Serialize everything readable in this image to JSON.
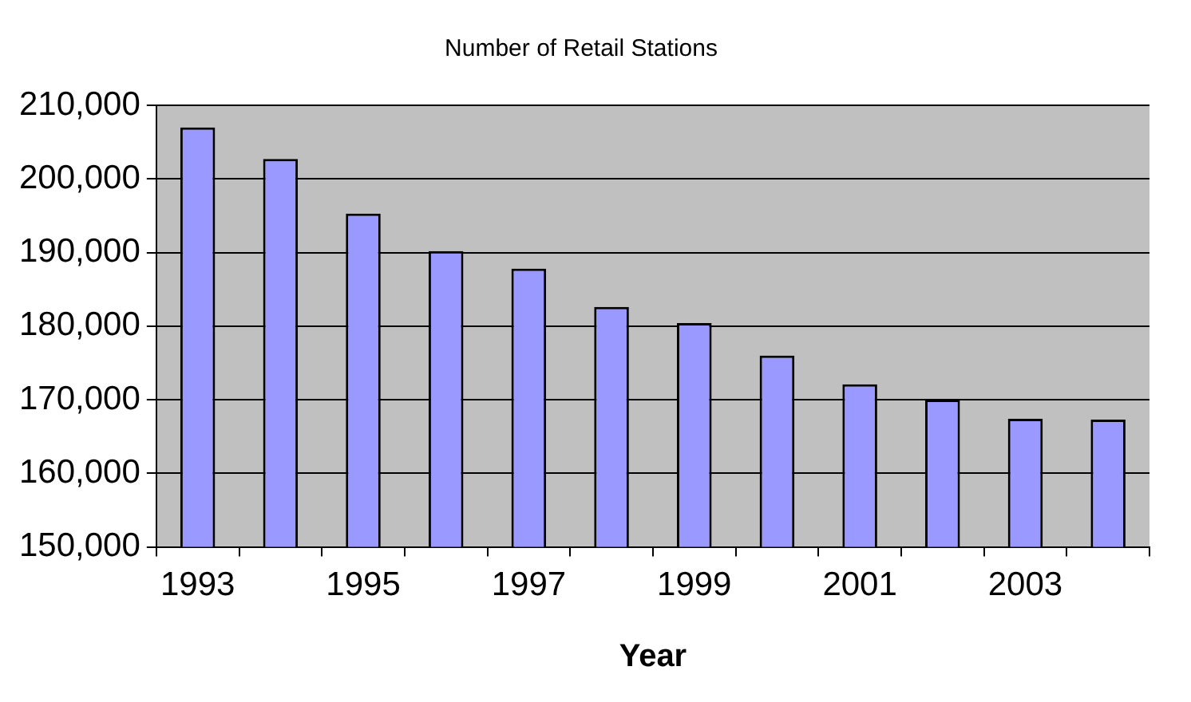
{
  "chart_data": {
    "type": "bar",
    "title": "Number of Retail Stations",
    "xlabel": "Year",
    "categories": [
      "1993",
      null,
      "1995",
      null,
      "1997",
      null,
      "1999",
      null,
      "2001",
      null,
      "2003",
      null
    ],
    "values": [
      207000,
      202700,
      195300,
      190200,
      187800,
      182600,
      180400,
      176000,
      172100,
      170000,
      167400,
      167300
    ],
    "color": "#9999ff",
    "ylim": [
      150000,
      210000
    ],
    "yticks": [
      {
        "value": 150000,
        "label": "150,000"
      },
      {
        "value": 160000,
        "label": "160,000"
      },
      {
        "value": 170000,
        "label": "170,000"
      },
      {
        "value": 180000,
        "label": "180,000"
      },
      {
        "value": 190000,
        "label": "190,000"
      },
      {
        "value": 200000,
        "label": "200,000"
      },
      {
        "value": 210000,
        "label": "210,000"
      }
    ],
    "grid": "y"
  }
}
